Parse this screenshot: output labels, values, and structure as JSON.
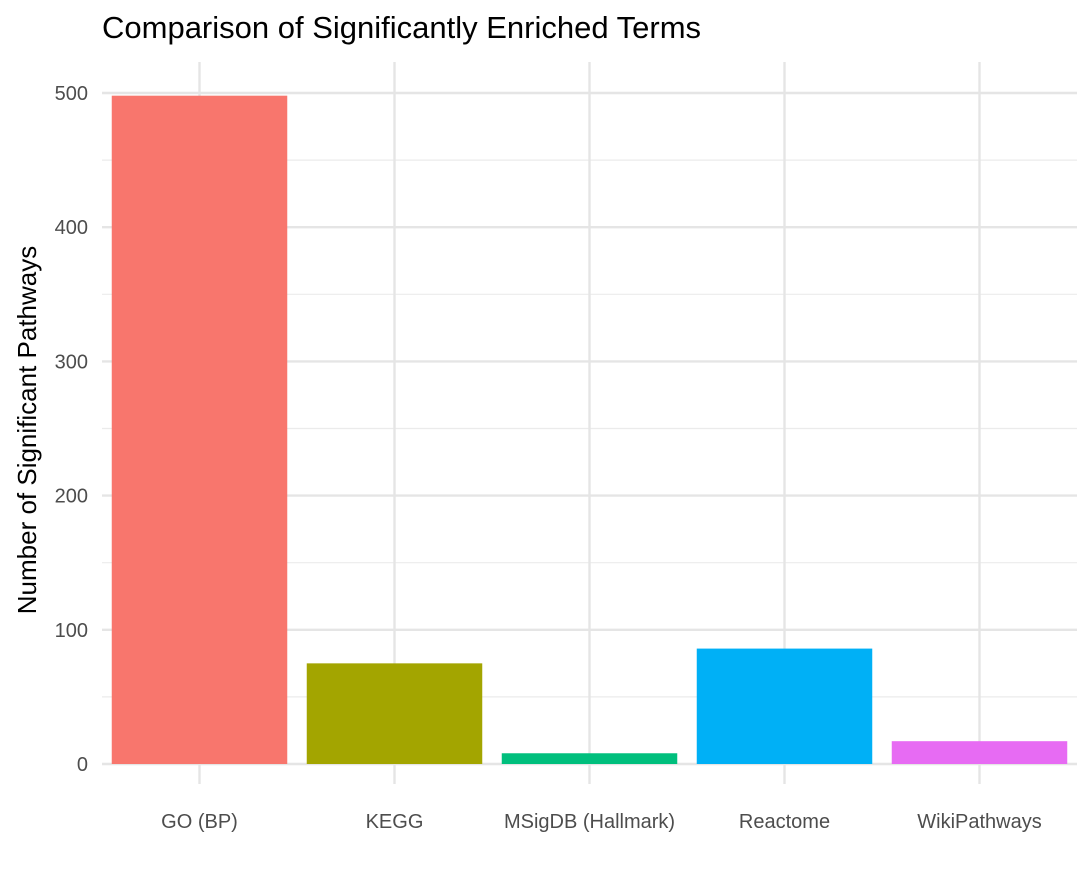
{
  "chart_data": {
    "type": "bar",
    "title": "Comparison of Significantly Enriched Terms",
    "xlabel": "",
    "ylabel": "Number of Significant Pathways",
    "categories": [
      "GO (BP)",
      "KEGG",
      "MSigDB (Hallmark)",
      "Reactome",
      "WikiPathways"
    ],
    "values": [
      498,
      75,
      8,
      86,
      17
    ],
    "colors": [
      "#F8766D",
      "#A3A500",
      "#00BF7D",
      "#00B0F6",
      "#E76BF3"
    ],
    "ylim": [
      0,
      500
    ],
    "yticks": [
      0,
      100,
      200,
      300,
      400,
      500
    ],
    "grid": true,
    "legend": "none"
  }
}
